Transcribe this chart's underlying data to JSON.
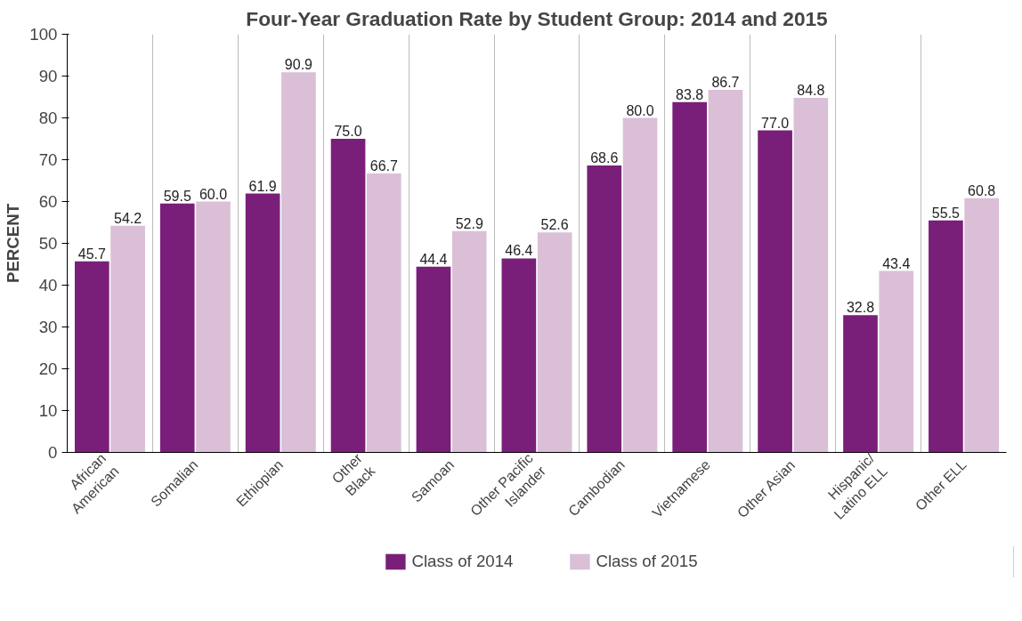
{
  "chart_data": {
    "type": "bar",
    "title": "Four-Year Graduation Rate by Student Group: 2014 and 2015",
    "ylabel": "PERCENT",
    "categories": [
      "African\nAmerican",
      "Somalian",
      "Ethiopian",
      "Other\nBlack",
      "Samoan",
      "Other Pacific\nIslander",
      "Cambodian",
      "Vietnamese",
      "Other Asian",
      "Hispanic/\nLatino ELL",
      "Other ELL"
    ],
    "series": [
      {
        "name": "Class of 2014",
        "color": "#7a1f79",
        "values": [
          45.7,
          59.5,
          61.9,
          75.0,
          44.4,
          46.4,
          68.6,
          83.8,
          77.0,
          32.8,
          55.5
        ],
        "value_labels": [
          "45.7",
          "59.5",
          "61.9",
          "75.0",
          "44.4",
          "46.4",
          "68.6",
          "83.8",
          "77.0",
          "32.8",
          "55.5"
        ]
      },
      {
        "name": "Class of 2015",
        "color": "#dabfd7",
        "values": [
          54.2,
          60.0,
          90.9,
          66.7,
          52.9,
          52.6,
          80.0,
          86.7,
          84.8,
          43.4,
          60.8
        ],
        "value_labels": [
          "54.2",
          "60.0",
          "90.9",
          "66.7",
          "52.9",
          "52.6",
          "80.0",
          "86.7",
          "84.8",
          "43.4",
          "60.8"
        ]
      }
    ],
    "ylim": [
      0,
      100
    ],
    "yticks": [
      0,
      10,
      20,
      30,
      40,
      50,
      60,
      70,
      80,
      90,
      100
    ],
    "grid": "x",
    "legend": "bottom"
  }
}
